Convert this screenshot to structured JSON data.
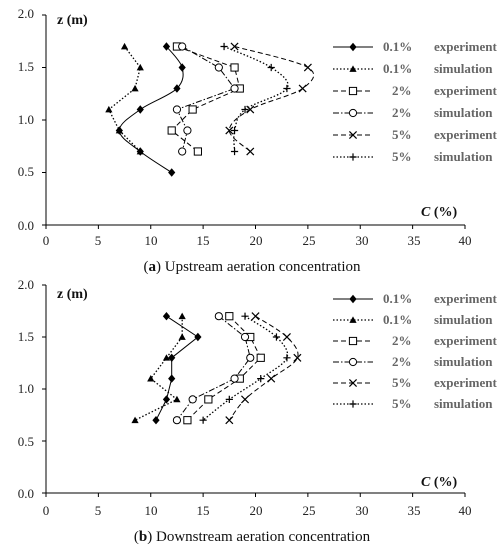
{
  "chart_data": [
    {
      "type": "line",
      "caption_letter": "a",
      "caption_text": " Upstream aeration concentration",
      "ylabel": "z (m)",
      "xlabel_var": "C",
      "xlabel_unit": " (%)",
      "xlim": [
        0,
        40
      ],
      "ylim": [
        0,
        2.0
      ],
      "xticks": [
        "0",
        "5",
        "10",
        "15",
        "20",
        "25",
        "30",
        "35",
        "40"
      ],
      "yticks": [
        "0.0",
        "0.5",
        "1.0",
        "1.5",
        "2.0"
      ],
      "grid": false,
      "legend_position": "top-right",
      "series": [
        {
          "name": "0.1%",
          "label": "experiment",
          "marker": "diamond",
          "dash": "solid",
          "smooth": true,
          "x": [
            11.5,
            13.0,
            12.5,
            9.0,
            7.0,
            9.0,
            12.0
          ],
          "y": [
            1.7,
            1.5,
            1.3,
            1.1,
            0.9,
            0.7,
            0.5
          ]
        },
        {
          "name": "0.1%",
          "label": "simulation",
          "marker": "triangle",
          "dash": "dotted",
          "smooth": false,
          "x": [
            7.5,
            9.0,
            8.5,
            6.0,
            7.0,
            9.0
          ],
          "y": [
            1.7,
            1.5,
            1.3,
            1.1,
            0.9,
            0.7
          ]
        },
        {
          "name": "2%",
          "label": "experiment",
          "marker": "square",
          "dash": "dash",
          "smooth": false,
          "x": [
            12.5,
            18.0,
            18.5,
            14.0,
            12.0,
            14.5
          ],
          "y": [
            1.7,
            1.5,
            1.3,
            1.1,
            0.9,
            0.7
          ]
        },
        {
          "name": "2%",
          "label": "simulation",
          "marker": "circle",
          "dash": "dashdot",
          "smooth": false,
          "x": [
            13.0,
            16.5,
            18.0,
            12.5,
            13.5,
            13.0
          ],
          "y": [
            1.7,
            1.5,
            1.3,
            1.1,
            0.9,
            0.7
          ]
        },
        {
          "name": "5%",
          "label": "experiment",
          "marker": "x",
          "dash": "dash",
          "smooth": true,
          "x": [
            18.0,
            25.0,
            24.5,
            19.5,
            17.5,
            19.5
          ],
          "y": [
            1.7,
            1.5,
            1.3,
            1.1,
            0.9,
            0.7
          ]
        },
        {
          "name": "5%",
          "label": "simulation",
          "marker": "plus",
          "dash": "dotted",
          "smooth": true,
          "x": [
            17.0,
            21.5,
            23.0,
            19.0,
            18.0,
            18.0
          ],
          "y": [
            1.7,
            1.5,
            1.3,
            1.1,
            0.9,
            0.7
          ]
        }
      ]
    },
    {
      "type": "line",
      "caption_letter": "b",
      "caption_text": " Downstream aeration concentration",
      "ylabel": "z (m)",
      "xlabel_var": "C",
      "xlabel_unit": " (%)",
      "xlim": [
        0,
        40
      ],
      "ylim": [
        0,
        2.0
      ],
      "xticks": [
        "0",
        "5",
        "10",
        "15",
        "20",
        "25",
        "30",
        "35",
        "40"
      ],
      "yticks": [
        "0.0",
        "0.5",
        "1.0",
        "1.5",
        "2.0"
      ],
      "grid": false,
      "legend_position": "top-right",
      "series": [
        {
          "name": "0.1%",
          "label": "experiment",
          "marker": "diamond",
          "dash": "solid",
          "smooth": false,
          "x": [
            11.5,
            14.5,
            12.0,
            12.0,
            11.5,
            10.5
          ],
          "y": [
            1.7,
            1.5,
            1.3,
            1.1,
            0.9,
            0.7
          ]
        },
        {
          "name": "0.1%",
          "label": "simulation",
          "marker": "triangle",
          "dash": "dotted",
          "smooth": false,
          "x": [
            13.0,
            13.0,
            11.5,
            10.0,
            12.5,
            8.5
          ],
          "y": [
            1.7,
            1.5,
            1.3,
            1.1,
            0.9,
            0.7
          ]
        },
        {
          "name": "2%",
          "label": "experiment",
          "marker": "square",
          "dash": "dash",
          "smooth": false,
          "x": [
            17.5,
            19.5,
            20.5,
            18.5,
            15.5,
            13.5
          ],
          "y": [
            1.7,
            1.5,
            1.3,
            1.1,
            0.9,
            0.7
          ]
        },
        {
          "name": "2%",
          "label": "simulation",
          "marker": "circle",
          "dash": "dashdot",
          "smooth": false,
          "x": [
            16.5,
            19.0,
            19.5,
            18.0,
            14.0,
            12.5
          ],
          "y": [
            1.7,
            1.5,
            1.3,
            1.1,
            0.9,
            0.7
          ]
        },
        {
          "name": "5%",
          "label": "experiment",
          "marker": "x",
          "dash": "dash",
          "smooth": true,
          "x": [
            20.0,
            23.0,
            24.0,
            21.5,
            19.0,
            17.5
          ],
          "y": [
            1.7,
            1.5,
            1.3,
            1.1,
            0.9,
            0.7
          ]
        },
        {
          "name": "5%",
          "label": "simulation",
          "marker": "plus",
          "dash": "dotted",
          "smooth": true,
          "x": [
            19.0,
            22.0,
            23.0,
            20.5,
            17.5,
            15.0
          ],
          "y": [
            1.7,
            1.5,
            1.3,
            1.1,
            0.9,
            0.7
          ]
        }
      ]
    }
  ]
}
